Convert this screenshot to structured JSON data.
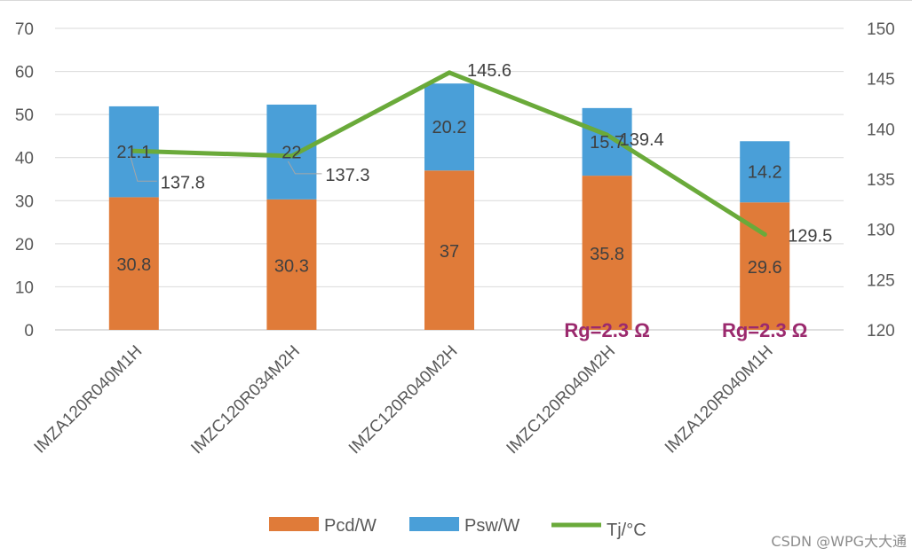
{
  "chart_data": {
    "type": "bar",
    "stacked": true,
    "categories": [
      "IMZA120R040M1H",
      "IMZC120R034M2H",
      "IMZC120R040M2H",
      "IMZC120R040M2H",
      "IMZA120R040M1H"
    ],
    "series": [
      {
        "name": "Pcd/W",
        "type": "bar",
        "axis": "left",
        "color": "#e07b39",
        "values": [
          30.8,
          30.3,
          37,
          35.8,
          29.6
        ]
      },
      {
        "name": "Psw/W",
        "type": "bar",
        "axis": "left",
        "color": "#4a9fd8",
        "values": [
          21.1,
          22,
          20.2,
          15.7,
          14.2
        ]
      },
      {
        "name": "Tj/°C",
        "type": "line",
        "axis": "right",
        "color": "#6aaa3a",
        "values": [
          137.8,
          137.3,
          145.6,
          139.4,
          129.5
        ]
      }
    ],
    "y_left": {
      "min": 0,
      "max": 70,
      "ticks": [
        0,
        10,
        20,
        30,
        40,
        50,
        60,
        70
      ]
    },
    "y_right": {
      "min": 120,
      "max": 150,
      "ticks": [
        120,
        125,
        130,
        135,
        140,
        145,
        150
      ]
    },
    "annotations": [
      {
        "category_index": 3,
        "text": "Rg=2.3 Ω"
      },
      {
        "category_index": 4,
        "text": "Rg=2.3 Ω"
      }
    ],
    "grid": true,
    "legend": "bottom"
  },
  "watermark": "CSDN @WPG大大通"
}
